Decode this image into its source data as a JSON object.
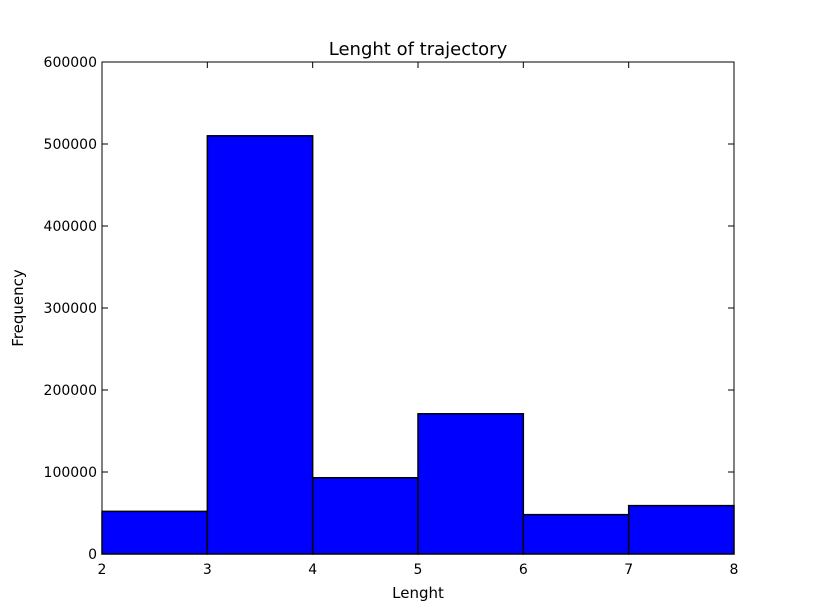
{
  "chart_data": {
    "type": "bar",
    "title": "Lenght of trajectory",
    "xlabel": "Lenght",
    "ylabel": "Frequency",
    "xlim": [
      2,
      8
    ],
    "ylim": [
      0,
      600000
    ],
    "xticks": [
      2,
      3,
      4,
      5,
      6,
      7,
      8
    ],
    "yticks": [
      0,
      100000,
      200000,
      300000,
      400000,
      500000,
      600000
    ],
    "bins": [
      {
        "x0": 2,
        "x1": 3,
        "value": 52000
      },
      {
        "x0": 3,
        "x1": 4,
        "value": 510000
      },
      {
        "x0": 4,
        "x1": 5,
        "value": 93000
      },
      {
        "x0": 5,
        "x1": 6,
        "value": 171000
      },
      {
        "x0": 6,
        "x1": 7,
        "value": 48000
      },
      {
        "x0": 7,
        "x1": 8,
        "value": 59000
      }
    ],
    "bar_color": "#0000ff",
    "edge_color": "#000000",
    "grid": false
  }
}
